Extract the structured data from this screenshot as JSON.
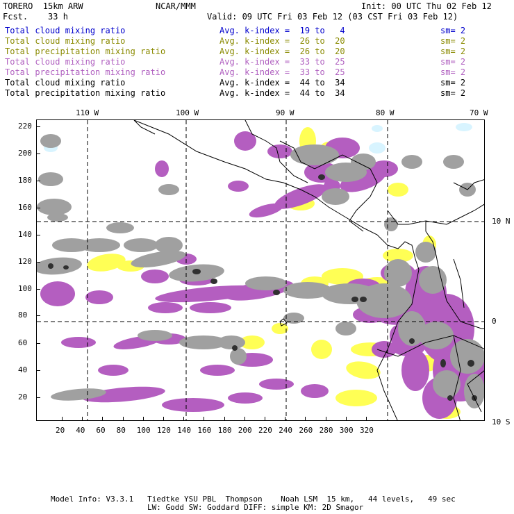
{
  "header": {
    "model": "TORERO  15km ARW",
    "center": "NCAR/MMM",
    "init": "Init: 00 UTC Thu 02 Feb 12",
    "fcst": "Fcst.    33 h",
    "valid": "Valid: 09 UTC Fri 03 Feb 12 (03 CST Fri 03 Feb 12)"
  },
  "legend": [
    {
      "field": "Total cloud mixing ratio",
      "index": "Avg. k-index =  19 to   4",
      "sm": "sm= 2",
      "color": "#0000cc"
    },
    {
      "field": "Total cloud mixing ratio",
      "index": "Avg. k-index =  26 to  20",
      "sm": "sm= 2",
      "color": "#8a8a00"
    },
    {
      "field": "Total precipitation mixing ratio",
      "index": "Avg. k-index =  26 to  20",
      "sm": "sm= 2",
      "color": "#8a8a00"
    },
    {
      "field": "Total cloud mixing ratio",
      "index": "Avg. k-index =  33 to  25",
      "sm": "sm= 2",
      "color": "#b060c0"
    },
    {
      "field": "Total precipitation mixing ratio",
      "index": "Avg. k-index =  33 to  25",
      "sm": "sm= 2",
      "color": "#b060c0"
    },
    {
      "field": "Total cloud mixing ratio",
      "index": "Avg. k-index =  44 to  34",
      "sm": "sm= 2",
      "color": "#000000"
    },
    {
      "field": "Total precipitation mixing ratio",
      "index": "Avg. k-index =  44 to  34",
      "sm": "sm= 2",
      "color": "#000000"
    }
  ],
  "map": {
    "lon_labels": [
      "110 W",
      "100 W",
      "90 W",
      "80 W",
      "70 W"
    ],
    "lat_labels": [
      "10 N",
      "0",
      "10 S"
    ],
    "y_ticks": [
      "220",
      "200",
      "180",
      "160",
      "140",
      "120",
      "100",
      "80",
      "60",
      "40",
      "20"
    ],
    "x_ticks": [
      "20",
      "40",
      "60",
      "80",
      "100",
      "120",
      "140",
      "160",
      "180",
      "200",
      "220",
      "240",
      "260",
      "280",
      "300",
      "320"
    ],
    "colors": {
      "gray_cloud": "#a0a0a0",
      "purple_precip": "#b45ec0",
      "yellow_precip": "#ffff55",
      "cyan_cloud": "#d8f4ff",
      "dark_core": "#303030",
      "coast": "#000000"
    }
  },
  "footer": {
    "line1": "Model Info: V3.3.1   Tiedtke YSU PBL  Thompson    Noah LSM  15 km,   44 levels,   49 sec",
    "line2": "LW: Godd SW: Goddard DIFF: simple KM: 2D Smagor"
  }
}
